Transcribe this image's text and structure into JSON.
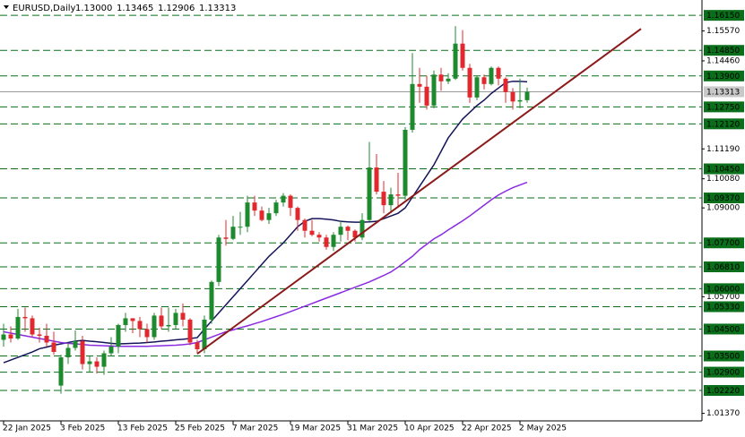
{
  "chart_data": {
    "type": "candlestick",
    "title": "EURUSD,Daily",
    "last_ohlc": {
      "values": [
        1.13,
        1.13465,
        1.12906,
        1.13313
      ],
      "value_labels": [
        "1.13000",
        "1.13465",
        "1.12906",
        "1.13313"
      ]
    },
    "categories": [
      "22 Jan 2025",
      null,
      null,
      null,
      null,
      null,
      null,
      null,
      "3 Feb 2025",
      null,
      null,
      null,
      null,
      null,
      null,
      null,
      "13 Feb 2025",
      null,
      null,
      null,
      null,
      null,
      null,
      null,
      "25 Feb 2025",
      null,
      null,
      null,
      null,
      null,
      null,
      null,
      "7 Mar 2025",
      null,
      null,
      null,
      null,
      null,
      null,
      null,
      "19 Mar 2025",
      null,
      null,
      null,
      null,
      null,
      null,
      null,
      "31 Mar 2025",
      null,
      null,
      null,
      null,
      null,
      null,
      null,
      "10 Apr 2025",
      null,
      null,
      null,
      null,
      null,
      null,
      null,
      "22 Apr 2025",
      null,
      null,
      null,
      null,
      null,
      null,
      null,
      "2 May 2025",
      null
    ],
    "open": [
      1.041,
      1.043,
      1.0415,
      1.0495,
      1.049,
      1.043,
      1.0425,
      1.04,
      1.024,
      1.0345,
      1.038,
      1.0405,
      1.032,
      1.033,
      1.031,
      1.036,
      1.0385,
      1.0465,
      1.049,
      1.048,
      1.045,
      1.042,
      1.05,
      1.046,
      1.0465,
      1.051,
      1.0485,
      1.04,
      1.0375,
      1.0485,
      1.0625,
      1.079,
      1.0785,
      1.083,
      1.083,
      1.092,
      1.089,
      1.0855,
      1.088,
      1.092,
      1.0945,
      1.09,
      1.0855,
      1.0815,
      1.08,
      1.079,
      1.0755,
      1.08,
      1.083,
      1.0815,
      1.079,
      1.0855,
      1.105,
      1.096,
      1.091,
      1.095,
      1.0945,
      1.119,
      1.136,
      1.135,
      1.128,
      1.1395,
      1.137,
      1.138,
      1.151,
      1.142,
      1.131,
      1.1385,
      1.136,
      1.142,
      1.138,
      1.133,
      1.1295,
      1.13
    ],
    "high": [
      1.047,
      1.046,
      1.0525,
      1.053,
      1.05,
      1.0455,
      1.047,
      1.044,
      1.0355,
      1.04,
      1.0445,
      1.0425,
      1.035,
      1.0345,
      1.037,
      1.042,
      1.047,
      1.051,
      1.049,
      1.0495,
      1.047,
      1.051,
      1.053,
      1.053,
      1.0525,
      1.0545,
      1.049,
      1.041,
      1.05,
      1.063,
      1.08,
      1.0855,
      1.087,
      1.0885,
      1.0945,
      1.0945,
      1.0905,
      1.09,
      1.093,
      1.0955,
      1.095,
      1.0905,
      1.086,
      1.0855,
      1.081,
      1.08,
      1.081,
      1.085,
      1.0835,
      1.082,
      1.088,
      1.1145,
      1.11,
      1.1,
      1.0975,
      1.103,
      1.12,
      1.1475,
      1.142,
      1.139,
      1.141,
      1.142,
      1.14,
      1.1575,
      1.156,
      1.1435,
      1.139,
      1.1395,
      1.1425,
      1.1425,
      1.1385,
      1.1345,
      1.138,
      1.13465
    ],
    "low": [
      1.0385,
      1.04,
      1.041,
      1.044,
      1.042,
      1.04,
      1.0385,
      1.0355,
      1.021,
      1.032,
      1.037,
      1.03,
      1.029,
      1.0285,
      1.028,
      1.035,
      1.036,
      1.044,
      1.0435,
      1.042,
      1.04,
      1.041,
      1.045,
      1.044,
      1.045,
      1.046,
      1.039,
      1.036,
      1.036,
      1.047,
      1.061,
      1.076,
      1.078,
      1.08,
      1.081,
      1.087,
      1.085,
      1.084,
      1.087,
      1.0905,
      1.087,
      1.0815,
      1.079,
      1.0795,
      1.0775,
      1.0745,
      1.074,
      1.0775,
      1.078,
      1.0775,
      1.078,
      1.085,
      1.095,
      1.088,
      1.088,
      1.09,
      1.093,
      1.118,
      1.129,
      1.1265,
      1.127,
      1.1335,
      1.136,
      1.1375,
      1.141,
      1.129,
      1.13,
      1.134,
      1.1355,
      1.1355,
      1.129,
      1.1265,
      1.127,
      1.12906
    ],
    "close": [
      1.043,
      1.0415,
      1.0495,
      1.049,
      1.043,
      1.0425,
      1.04,
      1.0365,
      1.0345,
      1.038,
      1.0405,
      1.032,
      1.033,
      1.031,
      1.036,
      1.0385,
      1.0465,
      1.049,
      1.048,
      1.045,
      1.042,
      1.05,
      1.046,
      1.0465,
      1.051,
      1.0485,
      1.04,
      1.0375,
      1.0485,
      1.0625,
      1.079,
      1.0785,
      1.083,
      1.083,
      1.092,
      1.089,
      1.0855,
      1.088,
      1.092,
      1.0945,
      1.09,
      1.0855,
      1.0815,
      1.08,
      1.079,
      1.0755,
      1.08,
      1.083,
      1.0815,
      1.079,
      1.0855,
      1.105,
      1.096,
      1.091,
      1.095,
      1.0945,
      1.119,
      1.136,
      1.135,
      1.128,
      1.1395,
      1.137,
      1.138,
      1.151,
      1.142,
      1.131,
      1.1385,
      1.136,
      1.142,
      1.138,
      1.133,
      1.1295,
      1.13,
      1.13313
    ],
    "up_color": "#1e8a2e",
    "down_color": "#e0282e",
    "moving_averages": [
      {
        "color": "#14145a",
        "values": [
          1.0325,
          1.0335,
          1.0345,
          1.0355,
          1.0365,
          1.0377,
          1.0383,
          1.039,
          1.0395,
          1.04,
          1.0405,
          1.0408,
          1.0405,
          1.0403,
          1.04,
          1.0397,
          1.0395,
          1.0396,
          1.0397,
          1.0398,
          1.04,
          1.0402,
          1.0405,
          1.0407,
          1.041,
          1.0412,
          1.0415,
          1.0418,
          1.045,
          1.048,
          1.051,
          1.054,
          1.057,
          1.06,
          1.063,
          1.066,
          1.069,
          1.072,
          1.0745,
          1.077,
          1.08,
          1.083,
          1.085,
          1.086,
          1.086,
          1.0858,
          1.0855,
          1.085,
          1.0848,
          1.0847,
          1.0847,
          1.0848,
          1.085,
          1.086,
          1.087,
          1.088,
          1.09,
          1.094,
          1.098,
          1.102,
          1.106,
          1.111,
          1.116,
          1.1195,
          1.123,
          1.1255,
          1.128,
          1.13,
          1.1325,
          1.1345,
          1.1365,
          1.137,
          1.137,
          1.1368
        ]
      },
      {
        "color": "#8a2be2",
        "values": [
          1.044,
          1.0435,
          1.043,
          1.0425,
          1.042,
          1.0415,
          1.041,
          1.0405,
          1.04,
          1.0397,
          1.0395,
          1.0393,
          1.039,
          1.0389,
          1.0388,
          1.0387,
          1.0386,
          1.0386,
          1.0386,
          1.0386,
          1.0386,
          1.0387,
          1.0388,
          1.0389,
          1.039,
          1.0392,
          1.0395,
          1.04,
          1.041,
          1.042,
          1.043,
          1.044,
          1.0447,
          1.0455,
          1.0462,
          1.047,
          1.0478,
          1.0487,
          1.0496,
          1.0505,
          1.0515,
          1.0525,
          1.0535,
          1.0545,
          1.0555,
          1.0565,
          1.0575,
          1.0585,
          1.0595,
          1.0605,
          1.0615,
          1.0625,
          1.0637,
          1.0649,
          1.0662,
          1.068,
          1.07,
          1.072,
          1.0745,
          1.0765,
          1.0785,
          1.08,
          1.0818,
          1.0835,
          1.0852,
          1.087,
          1.089,
          1.091,
          1.093,
          1.0948,
          1.0962,
          1.0975,
          1.0985,
          1.0995
        ]
      }
    ],
    "trendline": {
      "color": "#8b1a1a",
      "values": [
        1.0358,
        1.1565
      ]
    },
    "ylim": [
      1.0109,
      1.1672
    ],
    "yticks": [
      {
        "value": 1.1557,
        "label": "1.15570"
      },
      {
        "value": 1.1446,
        "label": "1.14460"
      },
      {
        "value": 1.1119,
        "label": "1.11190"
      },
      {
        "value": 1.1008,
        "label": "1.10080"
      },
      {
        "value": 1.09,
        "label": "1.09000"
      },
      {
        "value": 1.057,
        "label": "1.05700"
      },
      {
        "value": 1.0137,
        "label": "1.01370"
      }
    ],
    "level_color": "#0a6e1a",
    "levels": [
      {
        "value": 1.1615,
        "label": "1.16150"
      },
      {
        "value": 1.1485,
        "label": "1.14850"
      },
      {
        "value": 1.139,
        "label": "1.13900"
      },
      {
        "value": 1.1275,
        "label": "1.12750"
      },
      {
        "value": 1.1212,
        "label": "1.12120"
      },
      {
        "value": 1.1045,
        "label": "1.10450"
      },
      {
        "value": 1.0937,
        "label": "1.09370"
      },
      {
        "value": 1.077,
        "label": "1.07700"
      },
      {
        "value": 1.0681,
        "label": "1.06810"
      },
      {
        "value": 1.06,
        "label": "1.06000"
      },
      {
        "value": 1.0533,
        "label": "1.05330"
      },
      {
        "value": 1.045,
        "label": "1.04500"
      },
      {
        "value": 1.035,
        "label": "1.03500"
      },
      {
        "value": 1.029,
        "label": "1.02900"
      },
      {
        "value": 1.0222,
        "label": "1.02220"
      }
    ],
    "current_price": {
      "value": 1.13313,
      "label": "1.13313"
    }
  }
}
